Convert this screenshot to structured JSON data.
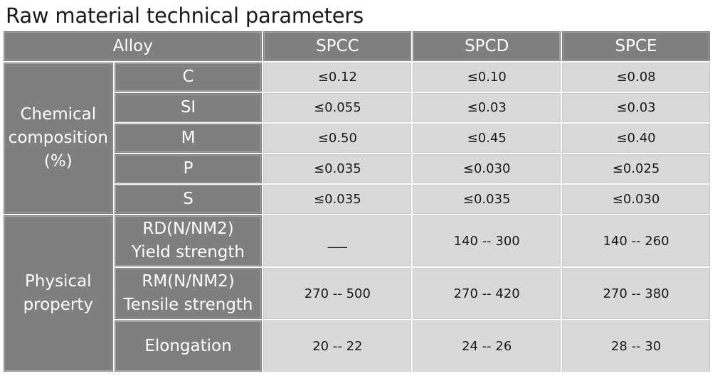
{
  "title": "Raw material technical parameters",
  "header": {
    "alloy_label": "Alloy",
    "grades": [
      "SPCC",
      "SPCD",
      "SPCE"
    ]
  },
  "chemical": {
    "label_lines": [
      "Chemical",
      "composition",
      "(%)"
    ],
    "rows": [
      {
        "element": "C",
        "values": [
          "≤0.12",
          "≤0.10",
          "≤0.08"
        ]
      },
      {
        "element": "SI",
        "values": [
          "≤0.055",
          "≤0.03",
          "≤0.03"
        ]
      },
      {
        "element": "M",
        "values": [
          "≤0.50",
          "≤0.45",
          "≤0.40"
        ]
      },
      {
        "element": "P",
        "values": [
          "≤0.035",
          "≤0.030",
          "≤0.025"
        ]
      },
      {
        "element": "S",
        "values": [
          "≤0.035",
          "≤0.035",
          "≤0.030"
        ]
      }
    ]
  },
  "physical": {
    "label_lines": [
      "Physical",
      "property"
    ],
    "rows": [
      {
        "label_lines": [
          "RD(N/NM2)",
          "Yield strength"
        ],
        "values": [
          "___",
          "140 -- 300",
          "140 -- 260"
        ]
      },
      {
        "label_lines": [
          "RM(N/NM2)",
          "Tensile strength"
        ],
        "values": [
          "270 -- 500",
          "270 -- 420",
          "270 -- 380"
        ]
      },
      {
        "label_lines": [
          "Elongation"
        ],
        "values": [
          "20 -- 22",
          "24 -- 26",
          "28 -- 30"
        ]
      }
    ]
  },
  "colors": {
    "header_bg": "#7f7f7f",
    "cell_bg": "#d9d9d9",
    "header_text": "#ffffff",
    "cell_text": "#1a1a1a"
  }
}
